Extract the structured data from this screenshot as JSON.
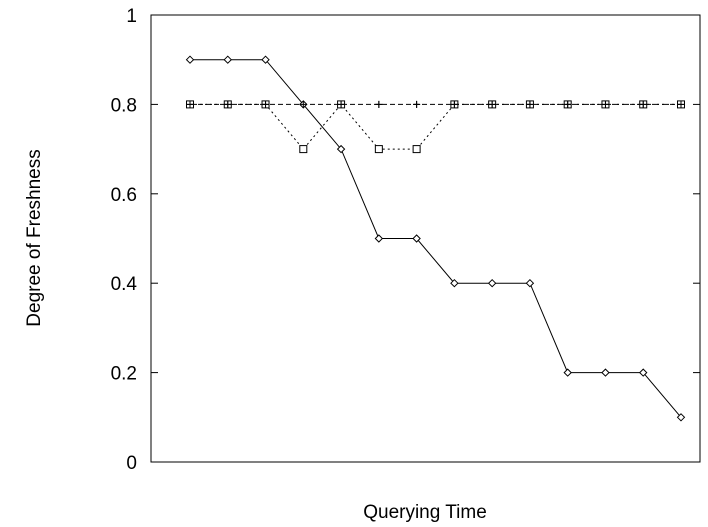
{
  "chart_data": {
    "type": "line",
    "title": "",
    "xlabel": "Querying Time",
    "ylabel": "Degree of Freshness",
    "ylim": [
      0,
      1
    ],
    "xlim": [
      0,
      14
    ],
    "grid": false,
    "legend": "none",
    "x_ticks": [],
    "y_ticks": [
      {
        "value": 0,
        "label": "0"
      },
      {
        "value": 0.2,
        "label": "0.2"
      },
      {
        "value": 0.4,
        "label": "0.4"
      },
      {
        "value": 0.6,
        "label": "0.6"
      },
      {
        "value": 0.8,
        "label": "0.8"
      },
      {
        "value": 1,
        "label": "1"
      }
    ],
    "x": [
      1,
      2,
      3,
      4,
      5,
      6,
      7,
      8,
      9,
      10,
      11,
      12,
      13,
      14
    ],
    "series": [
      {
        "values": [
          0.9,
          0.9,
          0.9,
          0.8,
          0.7,
          0.5,
          0.5,
          0.4,
          0.4,
          0.4,
          0.2,
          0.2,
          0.2,
          0.1
        ],
        "marker": "diamond",
        "line_style": "solid",
        "color": "#000000"
      },
      {
        "values": [
          0.8,
          0.8,
          0.8,
          0.8,
          0.8,
          0.8,
          0.8,
          0.8,
          0.8,
          0.8,
          0.8,
          0.8,
          0.8,
          0.8
        ],
        "marker": "plus",
        "line_style": "dashed",
        "color": "#000000"
      },
      {
        "values": [
          0.8,
          0.8,
          0.8,
          0.7,
          0.8,
          0.7,
          0.7,
          0.8,
          0.8,
          0.8,
          0.8,
          0.8,
          0.8,
          0.8
        ],
        "marker": "square",
        "line_style": "dotted",
        "color": "#000000"
      }
    ]
  }
}
